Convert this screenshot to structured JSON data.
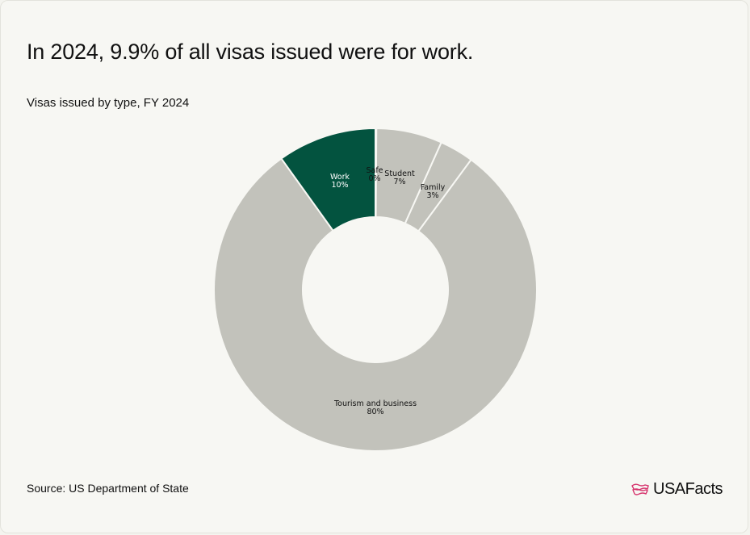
{
  "header": {
    "title": "In 2024, 9.9% of all visas issued were for work.",
    "subtitle": "Visas issued by type, FY 2024"
  },
  "footer": {
    "source": "Source: US Department of State",
    "logo_text": "USAFacts"
  },
  "colors": {
    "work": "#03533f",
    "other": "#c2c2bb",
    "logo_accent": "#d6336c"
  },
  "chart_data": {
    "type": "pie",
    "donut": true,
    "title": "Visas issued by type, FY 2024",
    "slices": [
      {
        "name": "Safe",
        "value": 0.1,
        "label": "0%"
      },
      {
        "name": "Student",
        "value": 6.6,
        "label": "7%"
      },
      {
        "name": "Family",
        "value": 3.4,
        "label": "3%"
      },
      {
        "name": "Tourism and business",
        "value": 80.0,
        "label": "80%"
      },
      {
        "name": "Work",
        "value": 9.9,
        "label": "10%"
      }
    ],
    "highlight": "Work",
    "legend": "none"
  }
}
